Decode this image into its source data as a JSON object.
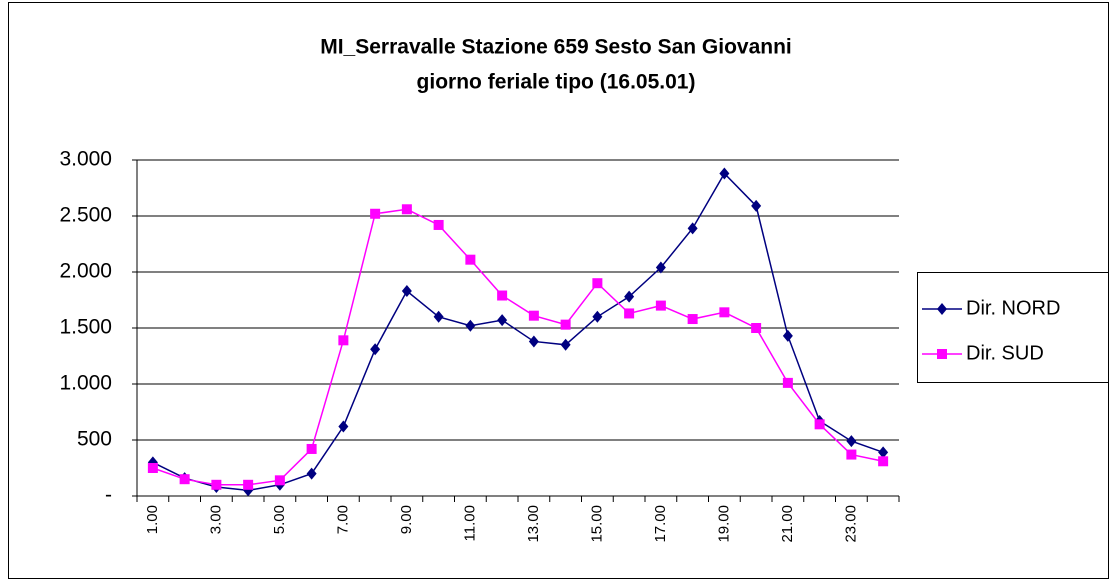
{
  "chart_data": {
    "type": "line",
    "title": "MI_Serravalle Stazione 659 Sesto San Giovanni",
    "subtitle": "giorno feriale tipo (16.05.01)",
    "categories": [
      "1.00",
      null,
      "3.00",
      null,
      "5.00",
      null,
      "7.00",
      null,
      "9.00",
      null,
      "11.00",
      null,
      "13.00",
      null,
      "15.00",
      null,
      "17.00",
      null,
      "19.00",
      null,
      "21.00",
      null,
      "23.00",
      null
    ],
    "series": [
      {
        "name": "Dir. NORD",
        "color": "#000080",
        "marker": "diamond",
        "values": [
          300,
          160,
          80,
          50,
          100,
          200,
          620,
          1310,
          1830,
          1600,
          1520,
          1570,
          1380,
          1350,
          1600,
          1780,
          2040,
          2390,
          2880,
          2590,
          1430,
          670,
          490,
          390
        ]
      },
      {
        "name": "Dir. SUD",
        "color": "#ff00ff",
        "marker": "square",
        "values": [
          250,
          150,
          100,
          100,
          140,
          420,
          1390,
          2520,
          2560,
          2420,
          2110,
          1790,
          1610,
          1530,
          1900,
          1630,
          1700,
          1580,
          1640,
          1500,
          1010,
          640,
          370,
          310
        ]
      }
    ],
    "ylim": [
      0,
      3000
    ],
    "yticks": [
      {
        "value": 0,
        "label": "-"
      },
      500,
      {
        "value": 1000,
        "label": "1.000"
      },
      {
        "value": 1500,
        "label": "1.500"
      },
      {
        "value": 2000,
        "label": "2.000"
      },
      {
        "value": 2500,
        "label": "2.500"
      },
      {
        "value": 3000,
        "label": "3.000"
      }
    ],
    "grid": true,
    "legend": "right"
  }
}
